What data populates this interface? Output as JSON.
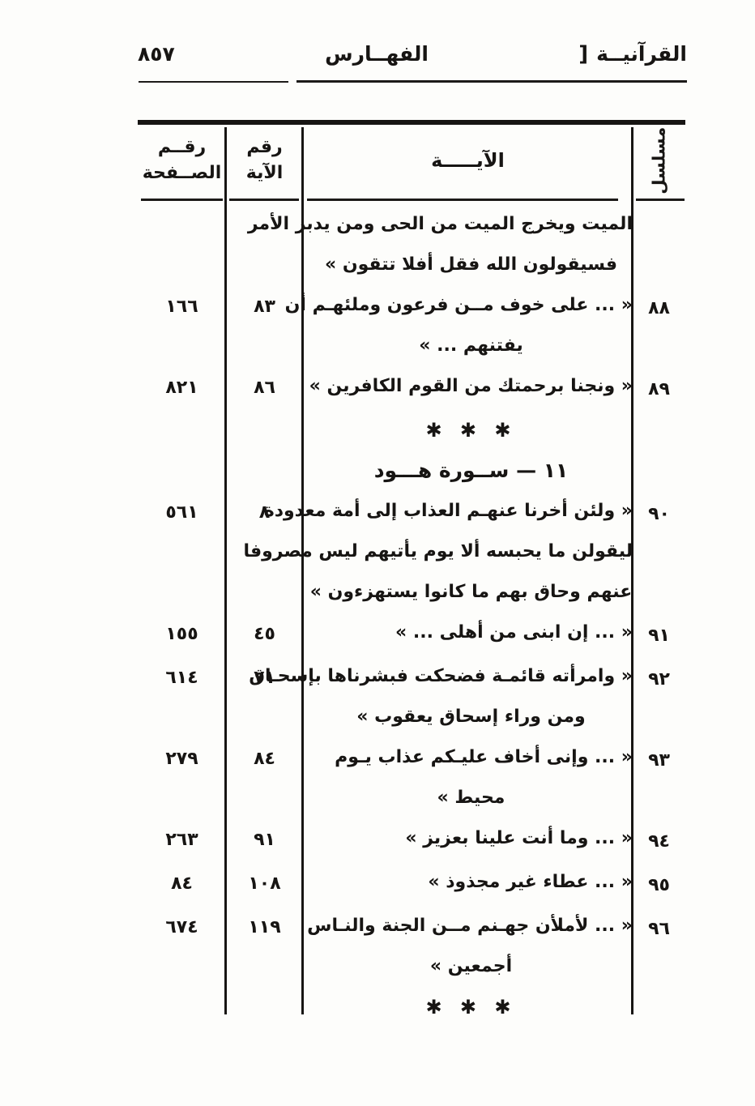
{
  "page_header": {
    "page_number": "٨٥٧",
    "center_title": "الفهــارس",
    "right_title": "القرآنيــة",
    "right_bracket": "]"
  },
  "table": {
    "headers": {
      "page_top": "رقــم",
      "page_bottom": "الصــفحة",
      "verse_top": "رقم",
      "verse_bottom": "الآية",
      "ayah": "الآيـــــة",
      "serial": "مسلسل"
    },
    "separator": "✱ ✱ ✱",
    "section_heading": "١١ — ســورة هـــود",
    "rows": [
      {
        "serial": "",
        "verse": "",
        "page": "",
        "lines": [
          "الميت ويخرج الميت من الحى ومن يدبر الأمر",
          "فسيقولون الله فقل أفلا تتقون »"
        ]
      },
      {
        "serial": "٨٨",
        "verse": "٨٣",
        "page": "١٦٦",
        "lines": [
          "« ... على خوف مــن فرعون وملئهـم أن",
          "يفتنهم ... »"
        ]
      },
      {
        "serial": "٨٩",
        "verse": "٨٦",
        "page": "٨٢١",
        "lines": [
          "« ونجنا برحمتك من القوم الكافرين »"
        ]
      },
      {
        "serial": "٩٠",
        "verse": "٨",
        "page": "٥٦١",
        "lines": [
          "« ولئن أخرنا عنهـم العذاب إلى أمة معدودة",
          "ليقولن ما يحبسه ألا يوم يأتيهم ليس مصروفا",
          "عنهم وحاق بهم ما كانوا يستهزءون »"
        ]
      },
      {
        "serial": "٩١",
        "verse": "٤٥",
        "page": "١٥٥",
        "lines": [
          "« ... إن ابنى من أهلى ... »"
        ]
      },
      {
        "serial": "٩٢",
        "verse": "٧١",
        "page": "٦١٤",
        "lines": [
          "« وامرأته قائمـة فضحكت فبشرناها بإسحـاق",
          "ومن وراء إسحاق يعقوب »"
        ]
      },
      {
        "serial": "٩٣",
        "verse": "٨٤",
        "page": "٢٧٩",
        "lines": [
          "« ... وإنى أخاف عليـكم عذاب يـوم",
          "محيط »"
        ]
      },
      {
        "serial": "٩٤",
        "verse": "٩١",
        "page": "٢٦٣",
        "lines": [
          "« ... وما أنت علينا بعزيز »"
        ]
      },
      {
        "serial": "٩٥",
        "verse": "١٠٨",
        "page": "٨٤",
        "lines": [
          "« ... عطاء غير مجذوذ »"
        ]
      },
      {
        "serial": "٩٦",
        "verse": "١١٩",
        "page": "٦٧٤",
        "lines": [
          "« ... لأملأن جهـنم مــن الجنة والنـاس",
          "أجمعين »"
        ]
      }
    ]
  }
}
